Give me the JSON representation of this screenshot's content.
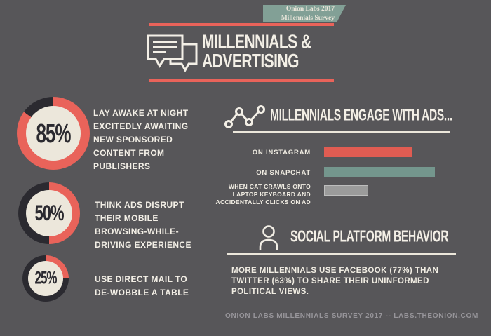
{
  "colors": {
    "bg": "#575659",
    "ring_red": "#e9635a",
    "dark": "#2b2a30",
    "cream": "#ece7db",
    "badge_green": "#82a096",
    "text_white": "#f3efe6",
    "footer_gray": "#97959a"
  },
  "badge": {
    "line1": "Onion Labs 2017",
    "line2": "Millennials Survey"
  },
  "title": {
    "line1": "MILLENNIALS &",
    "line2": "ADVERTISING"
  },
  "icons": {
    "title_icon": "speech-bubbles-icon",
    "engage_icon": "line-chart-icon",
    "social_icon": "person-icon"
  },
  "stats": [
    {
      "value": "85%",
      "text": "LAY AWAKE AT NIGHT\nEXCITEDLY AWAITING\nNEW SPONSORED\nCONTENT FROM\nPUBLISHERS"
    },
    {
      "value": "50%",
      "text": "THINK ADS DISRUPT\nTHEIR MOBILE\nBROWSING-WHILE-\nDRIVING EXPERIENCE"
    },
    {
      "value": "25%",
      "text": "USE DIRECT MAIL TO\nDE-WOBBLE A TABLE"
    }
  ],
  "sections": {
    "engage_title": "MILLENNIALS ENGAGE WITH ADS...",
    "social_title": "SOCIAL PLATFORM BEHAVIOR",
    "social_body": "MORE MILLENNIALS USE FACEBOOK (77%) THAN\nTWITTER (63%) TO SHARE THEIR UNINFORMED\nPOLITICAL VIEWS."
  },
  "footer": "ONION LABS MILLENNIALS SURVEY 2017 -- LABS.THEONION.COM",
  "chart_data": [
    {
      "type": "pie",
      "title": "LAY AWAKE AT NIGHT EXCITEDLY AWAITING NEW SPONSORED CONTENT FROM PUBLISHERS",
      "labels": [
        "85%",
        "remainder"
      ],
      "values": [
        85,
        15
      ],
      "style": "donut, red segment on dark ring, cream center"
    },
    {
      "type": "pie",
      "title": "THINK ADS DISRUPT THEIR MOBILE BROWSING-WHILE-DRIVING EXPERIENCE",
      "labels": [
        "50%",
        "remainder"
      ],
      "values": [
        50,
        50
      ],
      "style": "donut, red segment on dark ring, cream center"
    },
    {
      "type": "pie",
      "title": "USE DIRECT MAIL TO DE-WOBBLE A TABLE",
      "labels": [
        "25%",
        "remainder"
      ],
      "values": [
        25,
        75
      ],
      "style": "donut, red segment on dark ring, cream center"
    },
    {
      "type": "bar",
      "title": "MILLENNIALS ENGAGE WITH ADS...",
      "orientation": "horizontal",
      "categories": [
        "ON INSTAGRAM",
        "ON SNAPCHAT",
        "WHEN CAT CRAWLS ONTO\nLAPTOP KEYBOARD AND\nACCIDENTALLY CLICKS ON AD"
      ],
      "values": [
        40,
        50,
        20
      ],
      "value_note": "no axis shown; values estimated from relative bar lengths",
      "bar_colors": [
        "#e05c52",
        "#74968d",
        "#9b9b9b"
      ],
      "legend": "none",
      "grid": false
    }
  ]
}
